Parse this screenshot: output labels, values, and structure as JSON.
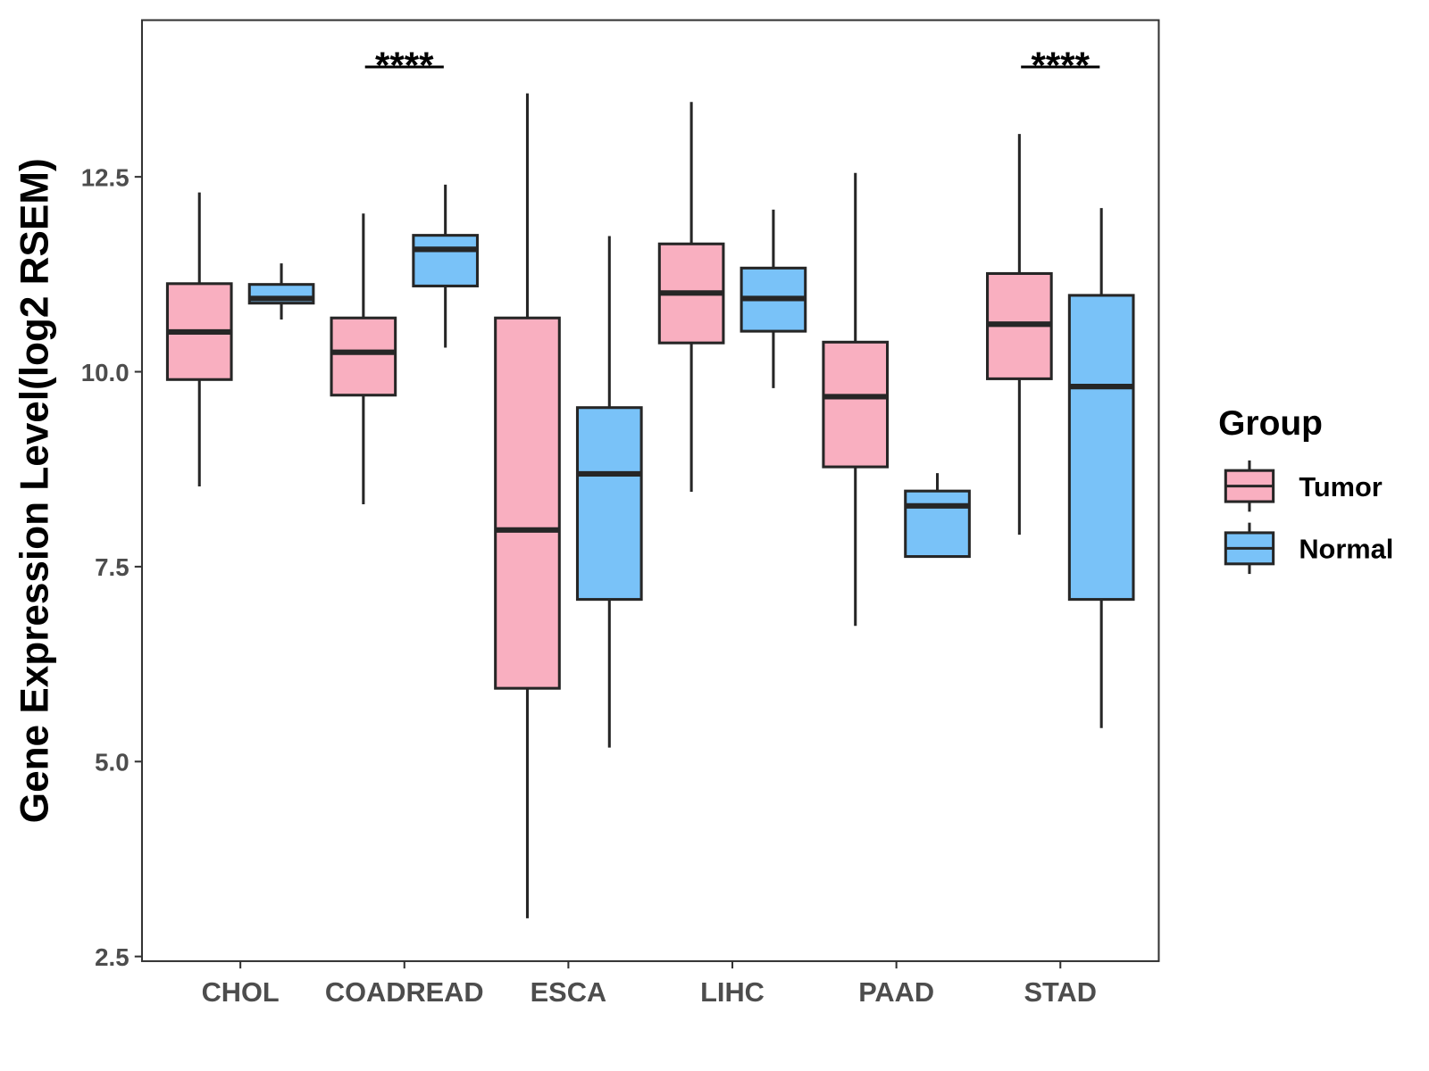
{
  "chart_data": {
    "type": "boxplot",
    "ylabel": "Gene Expression Level(log2 RSEM)",
    "categories": [
      "CHOL",
      "COADREAD",
      "ESCA",
      "LIHC",
      "PAAD",
      "STAD"
    ],
    "ylim": [
      2.44,
      14.51
    ],
    "yticks": [
      {
        "value": 2.5,
        "label": "2.5"
      },
      {
        "value": 5.0,
        "label": "5.0"
      },
      {
        "value": 7.5,
        "label": "7.5"
      },
      {
        "value": 10.0,
        "label": "10.0"
      },
      {
        "value": 12.5,
        "label": "12.5"
      }
    ],
    "grid": false,
    "legend": {
      "title": "Group",
      "position": "right"
    },
    "line_color": "#262626",
    "series": [
      {
        "name": "Tumor",
        "color": "#F9AFC0",
        "boxes": [
          {
            "min": 8.53,
            "q1": 9.9,
            "median": 10.51,
            "q3": 11.13,
            "max": 12.3
          },
          {
            "min": 8.3,
            "q1": 9.7,
            "median": 10.25,
            "q3": 10.69,
            "max": 12.03
          },
          {
            "min": 2.99,
            "q1": 5.94,
            "median": 7.97,
            "q3": 10.69,
            "max": 13.57
          },
          {
            "min": 8.46,
            "q1": 10.37,
            "median": 11.01,
            "q3": 11.64,
            "max": 13.46
          },
          {
            "min": 6.74,
            "q1": 8.78,
            "median": 9.68,
            "q3": 10.38,
            "max": 12.55
          },
          {
            "min": 7.91,
            "q1": 9.91,
            "median": 10.61,
            "q3": 11.26,
            "max": 13.05
          }
        ]
      },
      {
        "name": "Normal",
        "color": "#79C2F8",
        "boxes": [
          {
            "min": 10.67,
            "q1": 10.88,
            "median": 10.94,
            "q3": 11.12,
            "max": 11.39
          },
          {
            "min": 10.31,
            "q1": 11.1,
            "median": 11.57,
            "q3": 11.75,
            "max": 12.4
          },
          {
            "min": 5.18,
            "q1": 7.08,
            "median": 8.69,
            "q3": 9.54,
            "max": 11.74
          },
          {
            "min": 9.79,
            "q1": 10.52,
            "median": 10.94,
            "q3": 11.33,
            "max": 12.08
          },
          {
            "min": 7.63,
            "q1": 7.63,
            "median": 8.28,
            "q3": 8.47,
            "max": 8.7
          },
          {
            "min": 5.43,
            "q1": 7.08,
            "median": 9.81,
            "q3": 10.98,
            "max": 12.1
          }
        ]
      }
    ],
    "annotations": [
      {
        "category_index": 1,
        "label": "****",
        "y": 13.91
      },
      {
        "category_index": 5,
        "label": "****",
        "y": 13.91
      }
    ]
  }
}
